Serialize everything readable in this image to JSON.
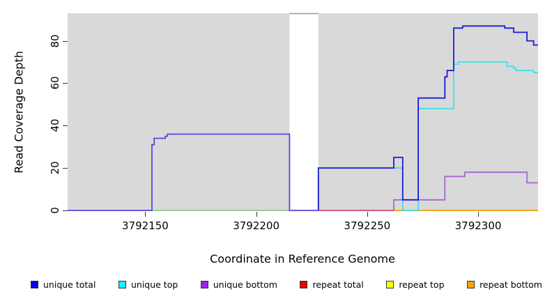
{
  "figure": {
    "ylabel": "Read Coverage Depth",
    "xlabel": "Coordinate in Reference Genome"
  },
  "chart_data": {
    "type": "line",
    "step": true,
    "title": "",
    "xlabel": "Coordinate in Reference Genome",
    "ylabel": "Read Coverage Depth",
    "xlim": [
      3792115,
      3792327
    ],
    "ylim": [
      0,
      93
    ],
    "xticks": [
      3792150,
      3792200,
      3792250,
      3792300
    ],
    "yticks": [
      0,
      20,
      40,
      60,
      80
    ],
    "grid": false,
    "panel_bg": "#d9d9d9",
    "gap_region": {
      "x0": 3792215,
      "x1": 3792228,
      "border_color": "#9a9a9a"
    },
    "shaded_regions": [
      {
        "x0": 3792115,
        "x1": 3792215
      },
      {
        "x0": 3792228,
        "x1": 3792327
      }
    ],
    "series": [
      {
        "name": "baseline green (unique top at 0)",
        "color": "#90ce90",
        "points": [
          [
            3792153,
            0
          ],
          [
            3792215,
            0
          ]
        ]
      },
      {
        "name": "repeat total baseline",
        "color": "#d4486e",
        "points": [
          [
            3792228,
            0
          ],
          [
            3792262,
            0
          ]
        ]
      },
      {
        "name": "repeat bottom baseline",
        "color": "#ff9d00",
        "points": [
          [
            3792262,
            0
          ],
          [
            3792327,
            0
          ]
        ]
      },
      {
        "name": "unique top",
        "color": "#3fe0e4",
        "points": [
          [
            3792228,
            0
          ],
          [
            3792228,
            20
          ],
          [
            3792266,
            0
          ],
          [
            3792273,
            48
          ],
          [
            3792289,
            69
          ],
          [
            3792291,
            70
          ],
          [
            3792313,
            68
          ],
          [
            3792316,
            67
          ],
          [
            3792317,
            66
          ],
          [
            3792325,
            65
          ],
          [
            3792327,
            65
          ]
        ]
      },
      {
        "name": "unique bottom",
        "color": "#a865d6",
        "points": [
          [
            3792262,
            0
          ],
          [
            3792262,
            5
          ],
          [
            3792285,
            16
          ],
          [
            3792294,
            18
          ],
          [
            3792322,
            13
          ],
          [
            3792327,
            13
          ]
        ]
      },
      {
        "name": "unique total + unique bottom (left block overlap)",
        "color": "#5b44dd",
        "points": [
          [
            3792115,
            0
          ],
          [
            3792153,
            31
          ],
          [
            3792154,
            34
          ],
          [
            3792159,
            35
          ],
          [
            3792160,
            36
          ],
          [
            3792215,
            0
          ],
          [
            3792228,
            0
          ]
        ]
      },
      {
        "name": "unique total",
        "color": "#1c1cd6",
        "points": [
          [
            3792228,
            0
          ],
          [
            3792228,
            20
          ],
          [
            3792262,
            25
          ],
          [
            3792266,
            5
          ],
          [
            3792273,
            53
          ],
          [
            3792285,
            63
          ],
          [
            3792286,
            66
          ],
          [
            3792289,
            86
          ],
          [
            3792293,
            87
          ],
          [
            3792312,
            86
          ],
          [
            3792316,
            84
          ],
          [
            3792322,
            80
          ],
          [
            3792325,
            78
          ],
          [
            3792327,
            78
          ]
        ]
      }
    ]
  },
  "legend": {
    "items": [
      {
        "label": "unique total",
        "color": "#0000ee"
      },
      {
        "label": "unique top",
        "color": "#00ffff"
      },
      {
        "label": "unique bottom",
        "color": "#a020f0"
      },
      {
        "label": "repeat total",
        "color": "#ee0000"
      },
      {
        "label": "repeat top",
        "color": "#ffff00"
      },
      {
        "label": "repeat bottom",
        "color": "#ffa500"
      }
    ]
  }
}
